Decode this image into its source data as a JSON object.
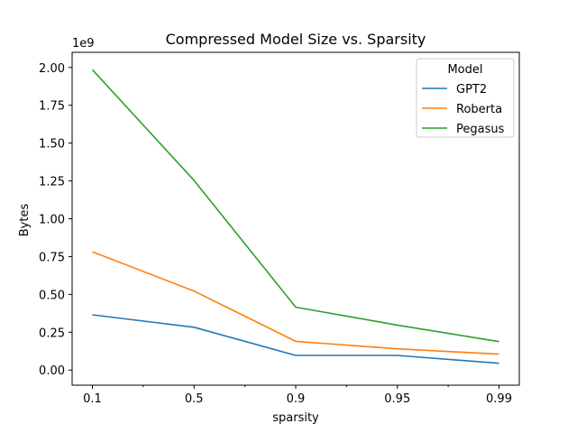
{
  "chart_data": {
    "type": "line",
    "title": "Compressed Model Size vs. Sparsity",
    "xlabel": "sparsity",
    "ylabel": "Bytes",
    "y_offset_label": "1e9",
    "categories": [
      "0.1",
      "0.5",
      "0.9",
      "0.95",
      "0.99"
    ],
    "ylim": [
      -100000000.0,
      2100000000.0
    ],
    "yticks": [
      0,
      250000000.0,
      500000000.0,
      750000000.0,
      1000000000.0,
      1250000000.0,
      1500000000.0,
      1750000000.0,
      2000000000.0
    ],
    "ytick_labels": [
      "0.00",
      "0.25",
      "0.50",
      "0.75",
      "1.00",
      "1.25",
      "1.50",
      "1.75",
      "2.00"
    ],
    "grid": false,
    "legend_title": "Model",
    "legend_placement": "top-right",
    "series": [
      {
        "name": "GPT2",
        "color": "#1f77b4",
        "values": [
          365000000.0,
          283000000.0,
          97000000.0,
          97000000.0,
          45000000.0
        ]
      },
      {
        "name": "Roberta",
        "color": "#ff7f0e",
        "values": [
          782000000.0,
          522000000.0,
          190000000.0,
          140000000.0,
          105000000.0
        ]
      },
      {
        "name": "Pegasus",
        "color": "#2ca02c",
        "values": [
          1985000000.0,
          1253000000.0,
          416000000.0,
          297000000.0,
          188000000.0
        ]
      }
    ]
  }
}
